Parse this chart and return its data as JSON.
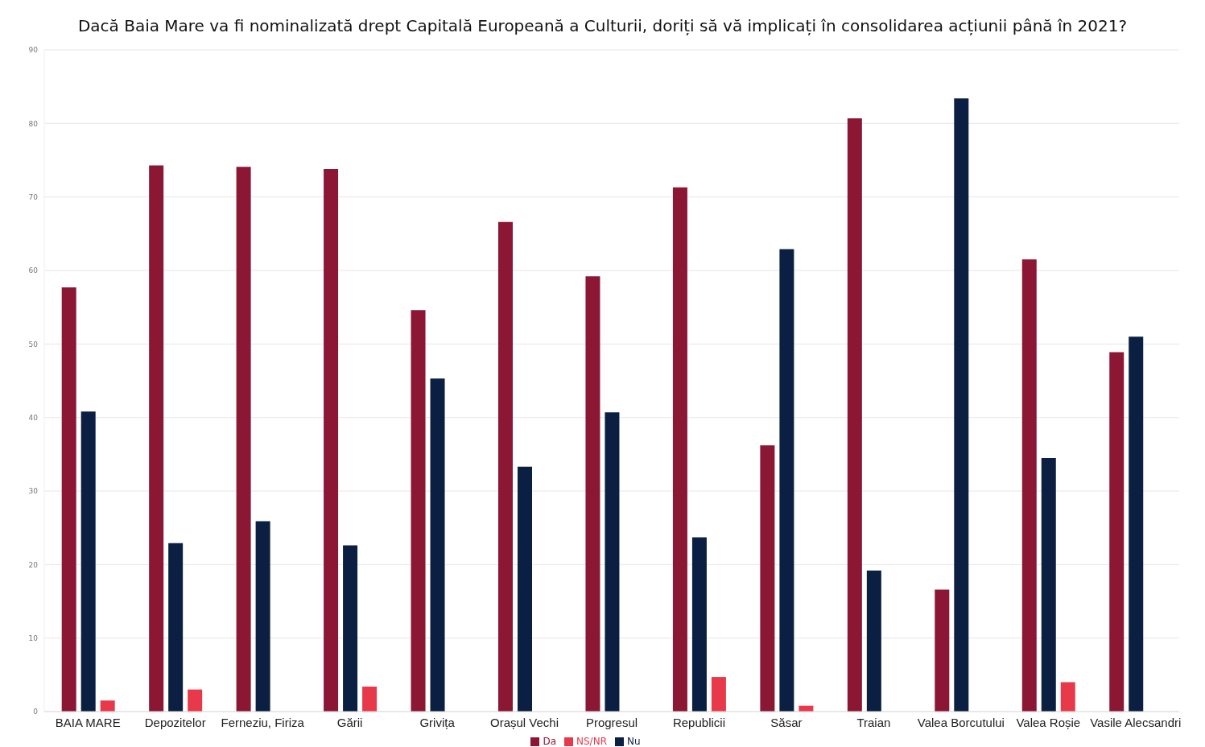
{
  "chart_data": {
    "type": "bar",
    "title": "Dacă Baia Mare va fi nominalizată drept Capitală Europeană a Culturii, doriți să vă implicați în consolidarea acțiunii până în 2021?",
    "categories": [
      "BAIA MARE",
      "Depozitelor",
      "Ferneziu, Firiza",
      "Gării",
      "Grivița",
      "Orașul Vechi",
      "Progresul",
      "Republicii",
      "Săsar",
      "Traian",
      "Valea Borcutului",
      "Valea Roșie",
      "Vasile Alecsandri"
    ],
    "series": [
      {
        "name": "Da",
        "color": "#8c1735",
        "values": [
          57.7,
          74.3,
          74.1,
          73.8,
          54.6,
          66.6,
          59.2,
          71.3,
          36.2,
          80.7,
          16.6,
          61.5,
          48.9
        ]
      },
      {
        "name": "Nu",
        "color": "#0b1f42",
        "values": [
          40.8,
          22.9,
          25.9,
          22.6,
          45.3,
          33.3,
          40.7,
          23.7,
          62.9,
          19.2,
          83.4,
          34.5,
          51.0
        ]
      },
      {
        "name": "NS/NR",
        "color": "#e8394a",
        "values": [
          1.5,
          3.0,
          null,
          3.4,
          null,
          null,
          null,
          4.7,
          0.8,
          null,
          null,
          4.0,
          null
        ]
      }
    ],
    "ylim": [
      0,
      90
    ],
    "yticks": [
      0,
      10,
      20,
      30,
      40,
      50,
      60,
      70,
      80,
      90
    ],
    "grid": "y",
    "legend": "bottom"
  }
}
